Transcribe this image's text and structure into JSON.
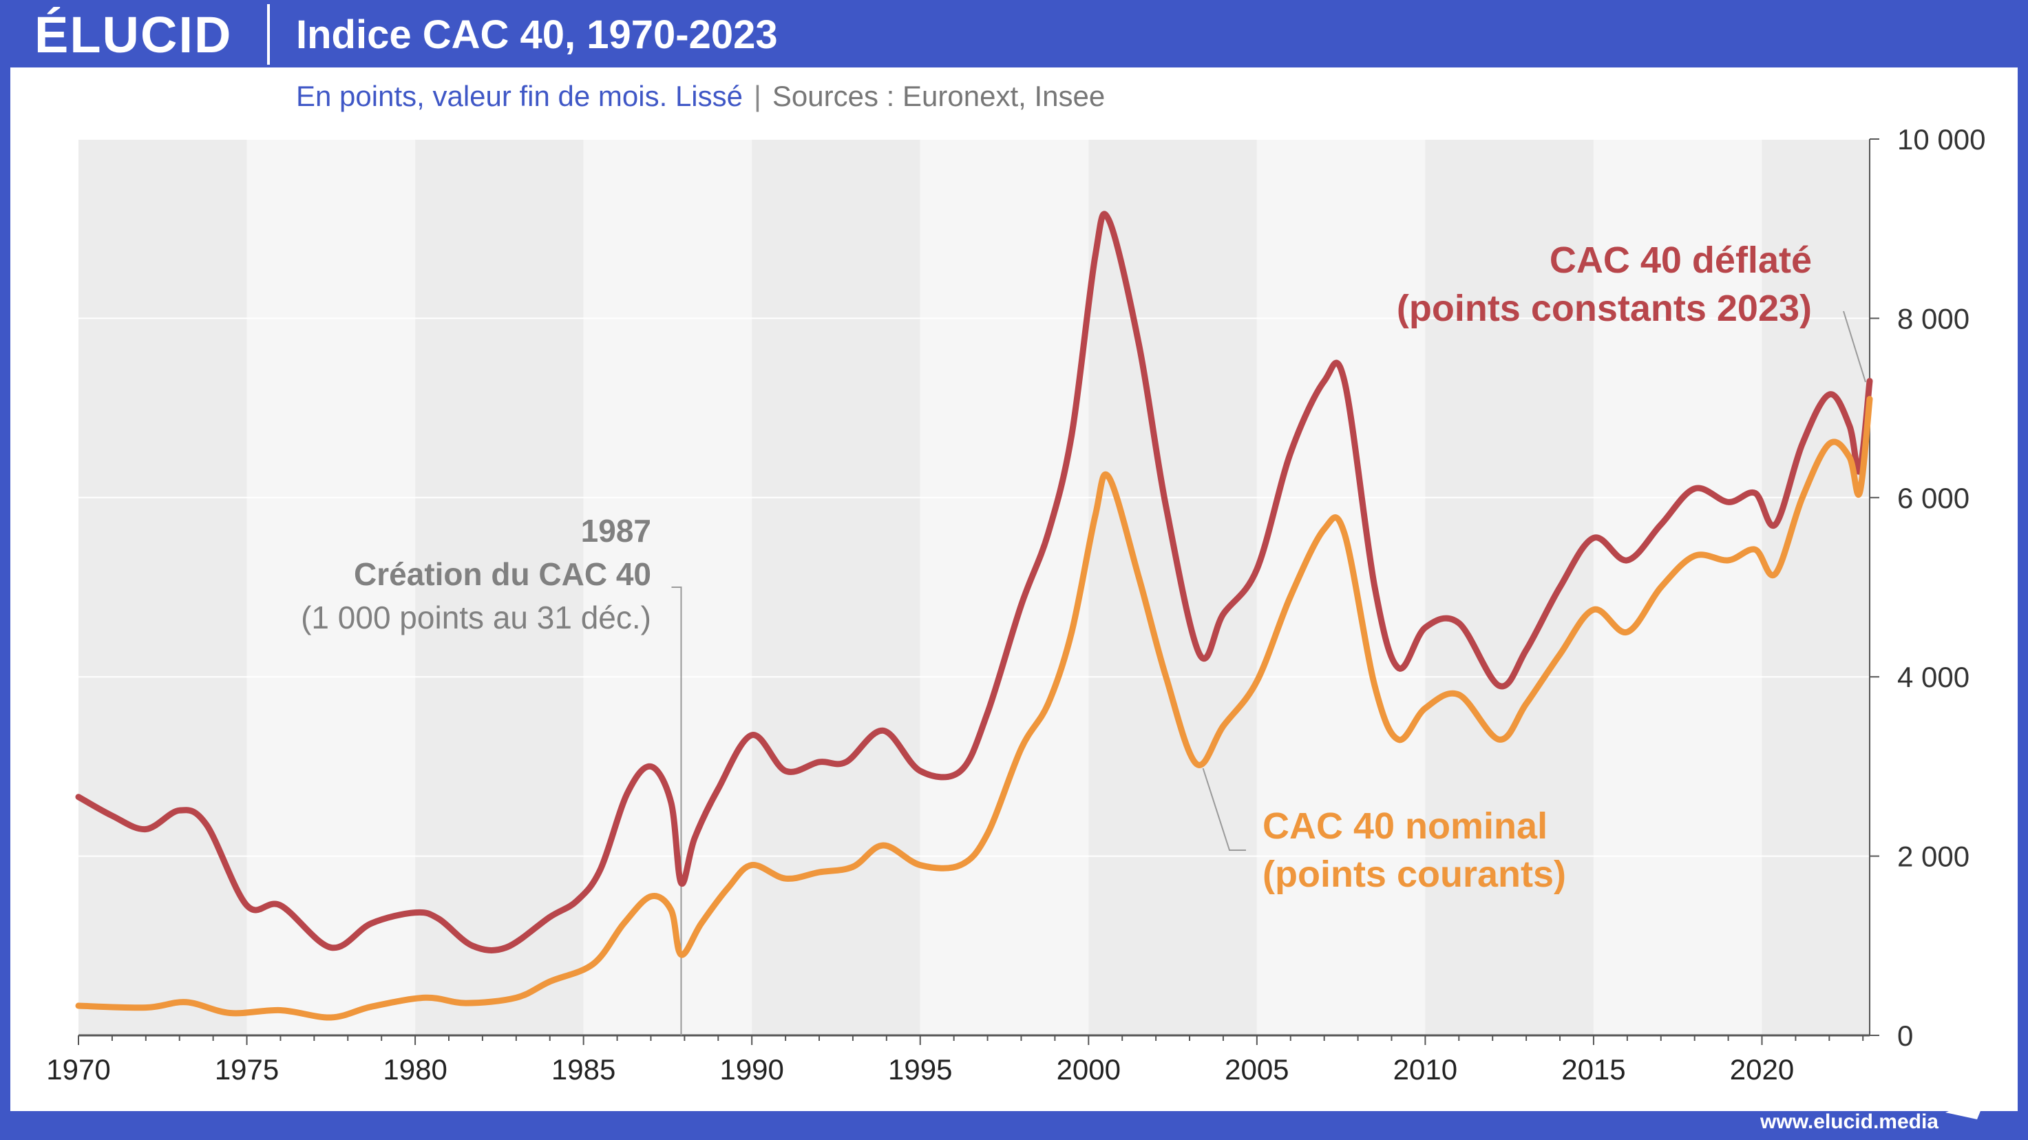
{
  "header": {
    "logo": "ÉLUCID",
    "title": "Indice CAC 40, 1970-2023"
  },
  "subtitle": {
    "text": "En points, valeur fin de mois. Lissé",
    "separator": "|",
    "sources": "Sources : Euronext, Insee"
  },
  "footer": {
    "url": "www.elucid.media"
  },
  "colors": {
    "brand": "#3f57c6",
    "deflated": "#b8464b",
    "nominal": "#ef963c",
    "annotation": "#808080"
  },
  "annotations": {
    "creation_year": "1987",
    "creation_label": "Création du CAC 40",
    "creation_note": "(1 000 points au 31 déc.)",
    "deflated_label_1": "CAC 40 déflaté",
    "deflated_label_2": "(points constants 2023)",
    "nominal_label_1": "CAC 40 nominal",
    "nominal_label_2": "(points courants)"
  },
  "chart_data": {
    "type": "line",
    "title": "Indice CAC 40, 1970-2023",
    "xlim": [
      1970,
      2023.2
    ],
    "ylim": [
      0,
      10000
    ],
    "x_ticks": [
      1970,
      1975,
      1980,
      1985,
      1990,
      1995,
      2000,
      2005,
      2010,
      2015,
      2020
    ],
    "x_tick_labels": [
      "1970",
      "1975",
      "1980",
      "1985",
      "1990",
      "1995",
      "2000",
      "2005",
      "2010",
      "2015",
      "2020"
    ],
    "y_ticks": [
      0,
      2000,
      4000,
      6000,
      8000,
      10000
    ],
    "y_tick_labels": [
      "0",
      "2 000",
      "4 000",
      "6 000",
      "8 000",
      "10 000"
    ],
    "grid": "horizontal",
    "y_axis_position": "right",
    "series": [
      {
        "name": "CAC 40 déflaté (points constants 2023)",
        "color": "#b8464b",
        "points": [
          [
            1970,
            2660
          ],
          [
            1971,
            2450
          ],
          [
            1972,
            2300
          ],
          [
            1973,
            2510
          ],
          [
            1973.8,
            2350
          ],
          [
            1975,
            1450
          ],
          [
            1976,
            1450
          ],
          [
            1977.5,
            980
          ],
          [
            1978.7,
            1250
          ],
          [
            1980,
            1370
          ],
          [
            1980.7,
            1300
          ],
          [
            1981.7,
            1000
          ],
          [
            1982.7,
            980
          ],
          [
            1984,
            1320
          ],
          [
            1984.8,
            1500
          ],
          [
            1985.5,
            1850
          ],
          [
            1986.3,
            2700
          ],
          [
            1987,
            3000
          ],
          [
            1987.6,
            2600
          ],
          [
            1987.9,
            1700
          ],
          [
            1988.3,
            2200
          ],
          [
            1989,
            2750
          ],
          [
            1990,
            3350
          ],
          [
            1991,
            2950
          ],
          [
            1992,
            3050
          ],
          [
            1992.8,
            3050
          ],
          [
            1993.9,
            3400
          ],
          [
            1995,
            2950
          ],
          [
            1996.2,
            2950
          ],
          [
            1997,
            3600
          ],
          [
            1998,
            4800
          ],
          [
            1998.8,
            5600
          ],
          [
            1999.5,
            6700
          ],
          [
            2000.2,
            8700
          ],
          [
            2000.6,
            9100
          ],
          [
            2001.5,
            7700
          ],
          [
            2002.3,
            5900
          ],
          [
            2003.3,
            4250
          ],
          [
            2004,
            4700
          ],
          [
            2005,
            5200
          ],
          [
            2006,
            6500
          ],
          [
            2007,
            7300
          ],
          [
            2007.6,
            7300
          ],
          [
            2008.5,
            5000
          ],
          [
            2009.2,
            4100
          ],
          [
            2010,
            4550
          ],
          [
            2011,
            4600
          ],
          [
            2012.2,
            3900
          ],
          [
            2013,
            4300
          ],
          [
            2014,
            5000
          ],
          [
            2015,
            5550
          ],
          [
            2016,
            5300
          ],
          [
            2017,
            5700
          ],
          [
            2018,
            6100
          ],
          [
            2019,
            5950
          ],
          [
            2019.8,
            6050
          ],
          [
            2020.4,
            5700
          ],
          [
            2021.2,
            6600
          ],
          [
            2022,
            7150
          ],
          [
            2022.6,
            6800
          ],
          [
            2022.9,
            6300
          ],
          [
            2023.2,
            7300
          ]
        ]
      },
      {
        "name": "CAC 40 nominal (points courants)",
        "color": "#ef963c",
        "points": [
          [
            1970,
            330
          ],
          [
            1972,
            310
          ],
          [
            1973.2,
            370
          ],
          [
            1974.5,
            250
          ],
          [
            1976,
            280
          ],
          [
            1977.5,
            200
          ],
          [
            1978.7,
            320
          ],
          [
            1980.3,
            420
          ],
          [
            1981.5,
            360
          ],
          [
            1983,
            420
          ],
          [
            1984,
            600
          ],
          [
            1985.3,
            800
          ],
          [
            1986.2,
            1250
          ],
          [
            1987,
            1550
          ],
          [
            1987.6,
            1400
          ],
          [
            1987.9,
            900
          ],
          [
            1988.5,
            1250
          ],
          [
            1989.3,
            1650
          ],
          [
            1990,
            1900
          ],
          [
            1991,
            1750
          ],
          [
            1992,
            1820
          ],
          [
            1993,
            1880
          ],
          [
            1993.9,
            2120
          ],
          [
            1995,
            1900
          ],
          [
            1996.2,
            1900
          ],
          [
            1997,
            2250
          ],
          [
            1998,
            3200
          ],
          [
            1998.8,
            3700
          ],
          [
            1999.5,
            4500
          ],
          [
            2000.2,
            5800
          ],
          [
            2000.6,
            6230
          ],
          [
            2001.5,
            5100
          ],
          [
            2002.3,
            4000
          ],
          [
            2003.2,
            3030
          ],
          [
            2004,
            3450
          ],
          [
            2005,
            3950
          ],
          [
            2006,
            4900
          ],
          [
            2007,
            5650
          ],
          [
            2007.6,
            5600
          ],
          [
            2008.5,
            3900
          ],
          [
            2009.2,
            3300
          ],
          [
            2010,
            3650
          ],
          [
            2011,
            3800
          ],
          [
            2012.2,
            3300
          ],
          [
            2013,
            3700
          ],
          [
            2014,
            4250
          ],
          [
            2015,
            4750
          ],
          [
            2016,
            4500
          ],
          [
            2017,
            5000
          ],
          [
            2018,
            5350
          ],
          [
            2019,
            5300
          ],
          [
            2019.8,
            5420
          ],
          [
            2020.4,
            5150
          ],
          [
            2021.2,
            6000
          ],
          [
            2022,
            6600
          ],
          [
            2022.6,
            6450
          ],
          [
            2022.9,
            6050
          ],
          [
            2023.2,
            7100
          ]
        ]
      }
    ]
  }
}
